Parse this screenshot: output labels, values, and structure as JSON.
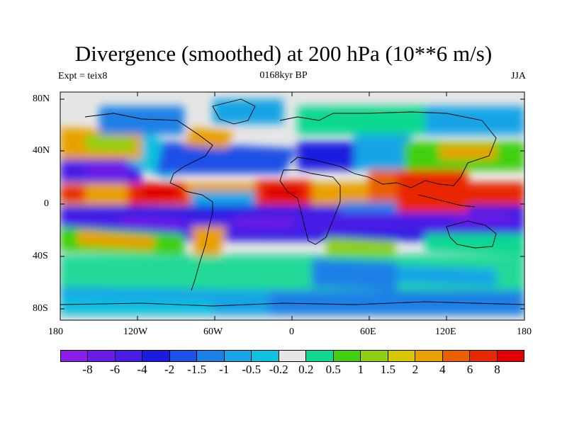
{
  "title": "Divergence (smoothed) at 200 hPa (10**6 m/s)",
  "subtitle_left": "Expt = teix8",
  "subtitle_center": "0168kyr BP",
  "subtitle_right": "JJA",
  "lat_ticks": [
    "80N",
    "40N",
    "0",
    "40S",
    "80S"
  ],
  "lon_ticks": [
    "180",
    "120W",
    "60W",
    "0",
    "60E",
    "120E",
    "180"
  ],
  "colorbar": {
    "labels": [
      "-8",
      "-6",
      "-4",
      "-2",
      "-1.5",
      "-1",
      "-0.5",
      "-0.2",
      "0.2",
      "0.5",
      "1",
      "1.5",
      "2",
      "4",
      "6",
      "8"
    ],
    "colors": [
      "#8a1de6",
      "#6a1de6",
      "#4a1de6",
      "#1c1ce0",
      "#1c50e6",
      "#1a80e6",
      "#18a4e6",
      "#10c0e0",
      "#e6e6e6",
      "#10d890",
      "#40d010",
      "#90d010",
      "#d8c800",
      "#e8a000",
      "#e86000",
      "#e82800",
      "#e00000"
    ]
  }
}
